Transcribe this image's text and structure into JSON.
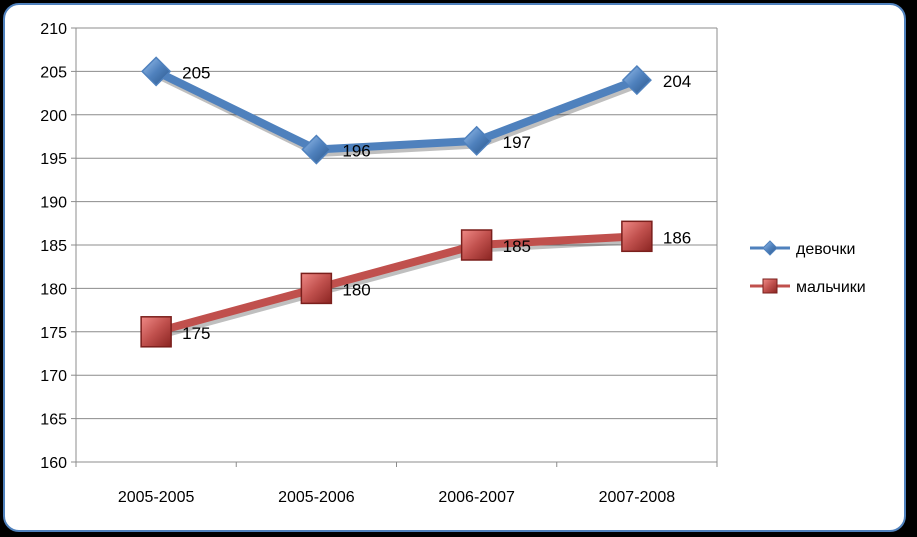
{
  "chart_data": {
    "type": "line",
    "categories": [
      "2005-2005",
      "2005-2006",
      "2006-2007",
      "2007-2008"
    ],
    "series": [
      {
        "name": "девочки",
        "values": [
          205,
          196,
          197,
          204
        ],
        "color": "#4f81bd",
        "marker": "diamond"
      },
      {
        "name": "мальчики",
        "values": [
          175,
          180,
          185,
          186
        ],
        "color": "#c0504d",
        "marker": "square"
      }
    ],
    "ylim": [
      160,
      210
    ],
    "ystep": 5,
    "yticks": [
      "160",
      "165",
      "170",
      "175",
      "180",
      "185",
      "190",
      "195",
      "200",
      "205",
      "210"
    ],
    "grid": true,
    "legend_position": "right",
    "data_labels": true
  }
}
